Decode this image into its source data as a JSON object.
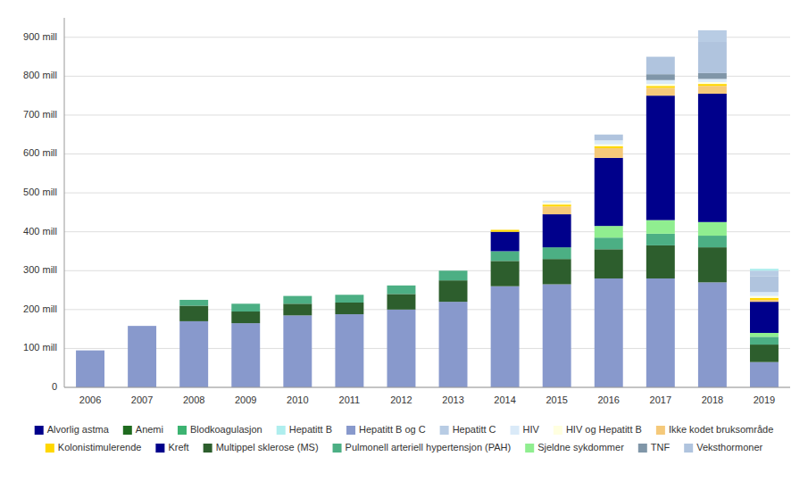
{
  "chart_data": {
    "type": "bar",
    "stacked": true,
    "grid": true,
    "legend": "bottom",
    "categories": [
      "2006",
      "2007",
      "2008",
      "2009",
      "2010",
      "2011",
      "2012",
      "2013",
      "2014",
      "2015",
      "2016",
      "2017",
      "2018",
      "2019"
    ],
    "series": [
      {
        "name": "Hepatitt B og C",
        "color": "#8899CC",
        "values": [
          95,
          158,
          170,
          165,
          185,
          188,
          200,
          220,
          260,
          265,
          280,
          280,
          270,
          65
        ]
      },
      {
        "name": "Multippel sklerose (MS)",
        "color": "#2D5E2D",
        "values": [
          0,
          0,
          40,
          30,
          30,
          30,
          40,
          55,
          65,
          65,
          75,
          85,
          90,
          45
        ]
      },
      {
        "name": "Pulmonell arteriell hypertensjon (PAH)",
        "color": "#4CAF84",
        "values": [
          0,
          0,
          15,
          20,
          20,
          20,
          22,
          25,
          25,
          30,
          30,
          30,
          30,
          20
        ]
      },
      {
        "name": "Blodkoagulasjon",
        "color": "#3CB371",
        "values": [
          0,
          0,
          0,
          0,
          0,
          0,
          0,
          0,
          0,
          0,
          0,
          0,
          0,
          0
        ]
      },
      {
        "name": "Sjeldne sykdommer",
        "color": "#90EE90",
        "values": [
          0,
          0,
          0,
          0,
          0,
          0,
          0,
          0,
          0,
          0,
          30,
          35,
          35,
          10
        ]
      },
      {
        "name": "Kreft",
        "color": "#00008B",
        "values": [
          0,
          0,
          0,
          0,
          0,
          0,
          0,
          0,
          50,
          85,
          175,
          320,
          330,
          80
        ]
      },
      {
        "name": "Alvorlig astma",
        "color": "#00008B",
        "values": [
          0,
          0,
          0,
          0,
          0,
          0,
          0,
          0,
          0,
          0,
          0,
          0,
          0,
          0
        ]
      },
      {
        "name": "Ikke kodet bruksområde",
        "color": "#F5C97A",
        "values": [
          0,
          0,
          0,
          0,
          0,
          0,
          0,
          0,
          0,
          20,
          25,
          20,
          20,
          5
        ]
      },
      {
        "name": "Kolonistimulerende",
        "color": "#FFD700",
        "values": [
          0,
          0,
          0,
          0,
          0,
          0,
          0,
          0,
          5,
          5,
          5,
          5,
          5,
          5
        ]
      },
      {
        "name": "HIV og Hepatitt B",
        "color": "#FFFFE0",
        "values": [
          0,
          0,
          0,
          0,
          0,
          0,
          0,
          0,
          0,
          5,
          5,
          5,
          5,
          5
        ]
      },
      {
        "name": "HIV",
        "color": "#DAEAF8",
        "values": [
          0,
          0,
          0,
          0,
          0,
          0,
          0,
          0,
          0,
          5,
          10,
          10,
          8,
          10
        ]
      },
      {
        "name": "TNF",
        "color": "#8096A8",
        "values": [
          0,
          0,
          0,
          0,
          0,
          0,
          0,
          0,
          0,
          0,
          0,
          15,
          15,
          0
        ]
      },
      {
        "name": "Veksthormoner",
        "color": "#B0C4DE",
        "values": [
          0,
          0,
          0,
          0,
          0,
          0,
          0,
          0,
          0,
          0,
          15,
          45,
          80,
          40
        ]
      },
      {
        "name": "Hepatitt C",
        "color": "#B8CCE4",
        "values": [
          0,
          0,
          0,
          0,
          0,
          0,
          0,
          0,
          0,
          0,
          0,
          0,
          30,
          15
        ]
      },
      {
        "name": "Hepatitt B",
        "color": "#AFEEEE",
        "values": [
          0,
          0,
          0,
          0,
          0,
          0,
          0,
          0,
          0,
          0,
          0,
          0,
          0,
          5
        ]
      },
      {
        "name": "Anemi",
        "color": "#1F6B1F",
        "values": [
          0,
          0,
          0,
          0,
          0,
          0,
          0,
          0,
          0,
          0,
          0,
          0,
          0,
          0
        ]
      }
    ],
    "ylim": [
      0,
      950
    ],
    "yticks": [
      0,
      {
        "value": 100,
        "label": "100 mill"
      },
      {
        "value": 200,
        "label": "200 mill"
      },
      {
        "value": 300,
        "label": "300 mill"
      },
      {
        "value": 400,
        "label": "400 mill"
      },
      {
        "value": 500,
        "label": "500 mill"
      },
      {
        "value": 600,
        "label": "600 mill"
      },
      {
        "value": 700,
        "label": "700 mill"
      },
      {
        "value": 800,
        "label": "800 mill"
      },
      {
        "value": 900,
        "label": "900 mill"
      }
    ]
  }
}
